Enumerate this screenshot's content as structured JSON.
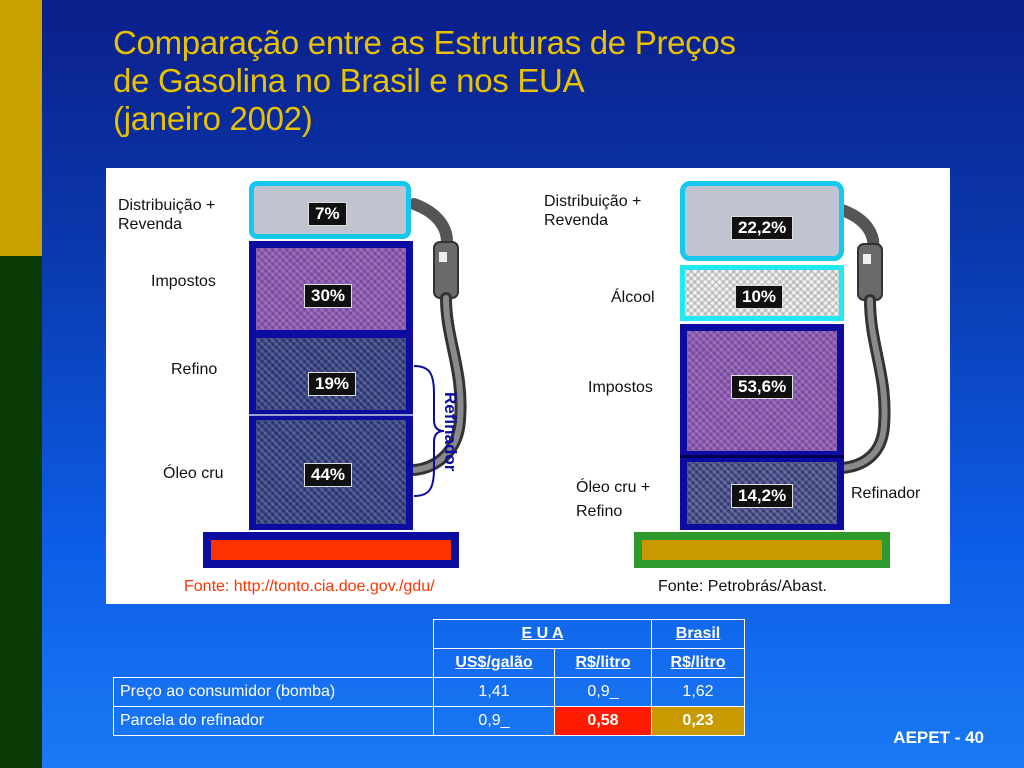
{
  "title": {
    "line1": "Comparação entre as Estruturas de Preços",
    "line2": "de Gasolina no Brasil e nos EUA",
    "line3": "(janeiro 2002)"
  },
  "usa_pump": {
    "labels": {
      "distribution_1": "Distribuição +",
      "distribution_2": "Revenda",
      "taxes": "Impostos",
      "refining": "Refino",
      "crude": "Óleo cru"
    },
    "values": {
      "distribution": "7%",
      "taxes": "30%",
      "refining": "19%",
      "crude": "44%"
    },
    "bracket_label": "Refinador",
    "source": "Fonte: http://tonto.cia.doe.gov./gdu/",
    "colors": {
      "base": "#ff3300",
      "source_text": "#ff3300"
    }
  },
  "brazil_pump": {
    "labels": {
      "distribution_1": "Distribuição +",
      "distribution_2": "Revenda",
      "alcohol": "Álcool",
      "taxes": "Impostos",
      "crude_1": "Óleo cru +",
      "crude_2": "Refino",
      "refiner": "Refinador"
    },
    "values": {
      "distribution": "22,2%",
      "alcohol": "10%",
      "taxes": "53,6%",
      "crude": "14,2%"
    },
    "source": "Fonte: Petrobrás/Abast.",
    "colors": {
      "base": "#c99a00",
      "base_border": "#2e9a2e"
    }
  },
  "table": {
    "header": {
      "usa": "E U A",
      "brazil": "Brasil"
    },
    "units": {
      "usa_gallon": "US$/galão",
      "usa_liter": "R$/litro",
      "brazil_liter": "R$/litro"
    },
    "rows": [
      {
        "label": "Preço ao consumidor (bomba)",
        "usa_gallon": "1,41",
        "usa_liter": "0,9_",
        "brazil_liter": "1,62"
      },
      {
        "label": "Parcela do refinador",
        "usa_gallon": "0,9_",
        "usa_liter": "0,58",
        "brazil_liter": "0,23"
      }
    ],
    "colors": {
      "highlight_usa": "#ff1a00",
      "highlight_brazil": "#c99a00"
    }
  },
  "footer": "AEPET - 40"
}
